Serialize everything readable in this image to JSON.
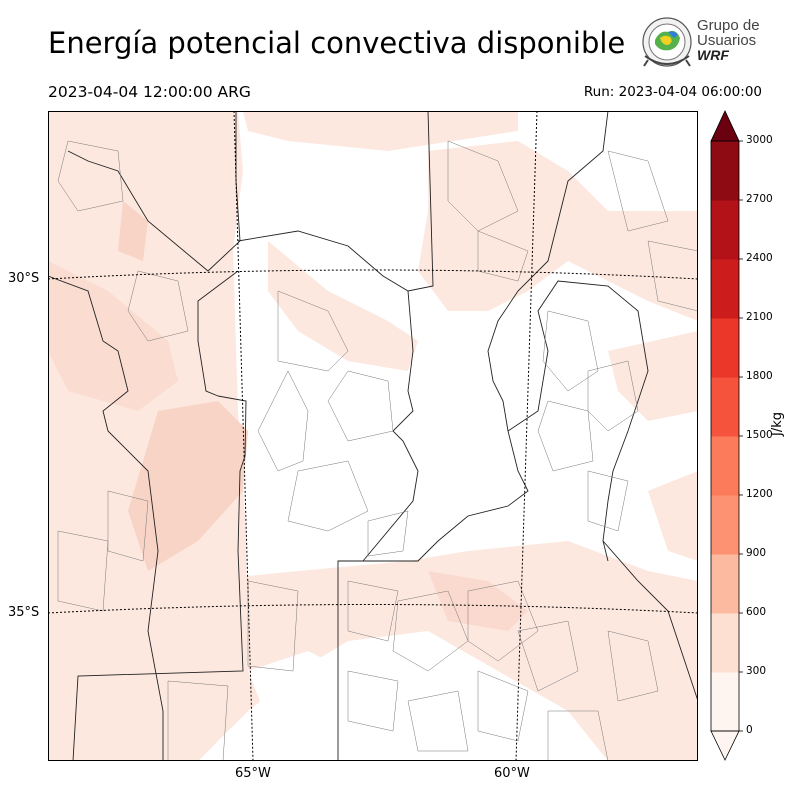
{
  "header": {
    "title": "Energía potencial convectiva disponible",
    "valid_time": "2023-04-04 12:00:00 ARG",
    "run_time": "Run: 2023-04-04 06:00:00"
  },
  "logo": {
    "line1": "Grupo de",
    "line2": "Usuarios",
    "line3": "WRF"
  },
  "map": {
    "lat_labels": [
      "30°S",
      "35°S"
    ],
    "lon_labels": [
      "65°W",
      "60°W"
    ],
    "field_color": "#fde8e0",
    "field_color_strong": "#f8d4c6"
  },
  "colorbar": {
    "unit": "J/kg",
    "ticks": [
      "0",
      "300",
      "600",
      "900",
      "1200",
      "1500",
      "1800",
      "2100",
      "2400",
      "2700",
      "3000"
    ],
    "colors": [
      "#fff5f0",
      "#fde0d2",
      "#fcbba1",
      "#fc9272",
      "#fb7b5b",
      "#f5533b",
      "#ea372a",
      "#cd1c1c",
      "#b21218",
      "#8f0b13",
      "#6a0010"
    ]
  }
}
